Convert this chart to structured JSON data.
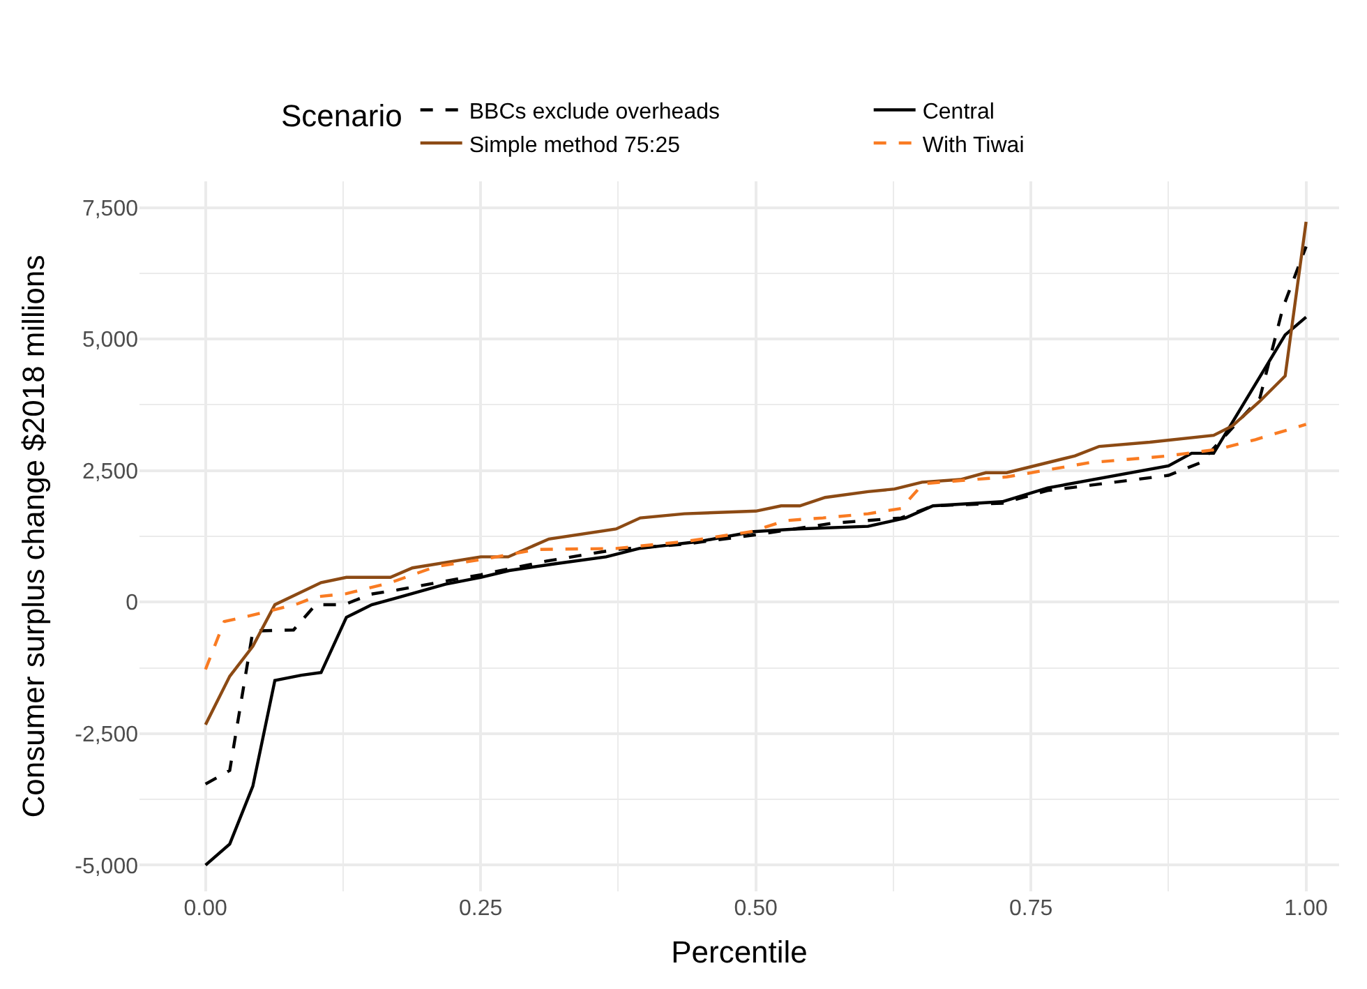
{
  "chart_data": {
    "type": "line",
    "xlabel": "Percentile",
    "ylabel": "Consumer surplus change $2018 millions",
    "legend_title": "Scenario",
    "xlim": [
      -0.06,
      1.03
    ],
    "ylim": [
      -5500,
      8000
    ],
    "xticks": [
      {
        "value": 0,
        "label": "0.00"
      },
      {
        "value": 0.25,
        "label": "0.25"
      },
      {
        "value": 0.5,
        "label": "0.50"
      },
      {
        "value": 0.75,
        "label": "0.75"
      },
      {
        "value": 1,
        "label": "1.00"
      }
    ],
    "yticks": [
      {
        "value": -5000,
        "label": "-5,000"
      },
      {
        "value": -2500,
        "label": "-2,500"
      },
      0,
      {
        "value": 2500,
        "label": "2,500"
      },
      {
        "value": 5000,
        "label": "5,000"
      },
      {
        "value": 7500,
        "label": "7,500"
      }
    ],
    "grid": true,
    "legend": "top",
    "series": [
      {
        "name": "BBCs exclude overheads",
        "color": "#000000",
        "line_style": "dashed",
        "x": [
          0,
          0.022,
          0.043,
          0.08,
          0.1,
          0.126,
          0.15,
          0.174,
          0.25,
          0.31,
          0.373,
          0.435,
          0.5,
          0.57,
          0.632,
          0.661,
          0.724,
          0.765,
          0.875,
          0.904,
          0.958,
          0.979,
          1.0
        ],
        "values": [
          -3460,
          -3200,
          -550,
          -530,
          -50,
          -50,
          150,
          230,
          520,
          780,
          1000,
          1100,
          1280,
          1500,
          1600,
          1830,
          1880,
          2120,
          2410,
          2650,
          3880,
          5600,
          6760
        ]
      },
      {
        "name": "Central",
        "color": "#000000",
        "line_style": "solid",
        "x": [
          0,
          0.022,
          0.043,
          0.063,
          0.087,
          0.105,
          0.128,
          0.151,
          0.174,
          0.218,
          0.25,
          0.276,
          0.318,
          0.364,
          0.394,
          0.448,
          0.498,
          0.536,
          0.602,
          0.636,
          0.661,
          0.724,
          0.765,
          0.875,
          0.896,
          0.916,
          0.981,
          1.0
        ],
        "values": [
          -5000,
          -4600,
          -3500,
          -1490,
          -1390,
          -1340,
          -290,
          -50,
          80,
          340,
          470,
          600,
          730,
          860,
          1020,
          1150,
          1340,
          1390,
          1440,
          1600,
          1830,
          1910,
          2170,
          2590,
          2830,
          2830,
          5080,
          5420
        ]
      },
      {
        "name": "Simple method 75:25",
        "color": "#8c4a14",
        "line_style": "solid",
        "x": [
          0,
          0.022,
          0.043,
          0.063,
          0.105,
          0.128,
          0.168,
          0.188,
          0.25,
          0.275,
          0.312,
          0.373,
          0.395,
          0.435,
          0.5,
          0.523,
          0.54,
          0.563,
          0.602,
          0.626,
          0.651,
          0.686,
          0.709,
          0.728,
          0.79,
          0.812,
          0.858,
          0.916,
          0.933,
          0.958,
          0.981,
          1.0
        ],
        "values": [
          -2330,
          -1410,
          -840,
          -50,
          370,
          470,
          470,
          650,
          860,
          860,
          1200,
          1390,
          1600,
          1680,
          1730,
          1830,
          1830,
          1990,
          2100,
          2150,
          2280,
          2330,
          2460,
          2460,
          2780,
          2960,
          3040,
          3170,
          3350,
          3820,
          4300,
          7230
        ]
      },
      {
        "name": "With Tiwai",
        "color": "#f97b22",
        "line_style": "dashed",
        "x": [
          0,
          0.017,
          0.034,
          0.056,
          0.084,
          0.1,
          0.128,
          0.168,
          0.21,
          0.251,
          0.301,
          0.373,
          0.435,
          0.496,
          0.527,
          0.561,
          0.602,
          0.632,
          0.652,
          0.686,
          0.728,
          0.803,
          0.875,
          0.921,
          0.954,
          1.0
        ],
        "values": [
          -1280,
          -370,
          -290,
          -180,
          -30,
          100,
          160,
          370,
          680,
          810,
          1000,
          1020,
          1150,
          1340,
          1550,
          1600,
          1680,
          1780,
          2250,
          2310,
          2380,
          2650,
          2780,
          2910,
          3090,
          3380
        ]
      }
    ]
  }
}
